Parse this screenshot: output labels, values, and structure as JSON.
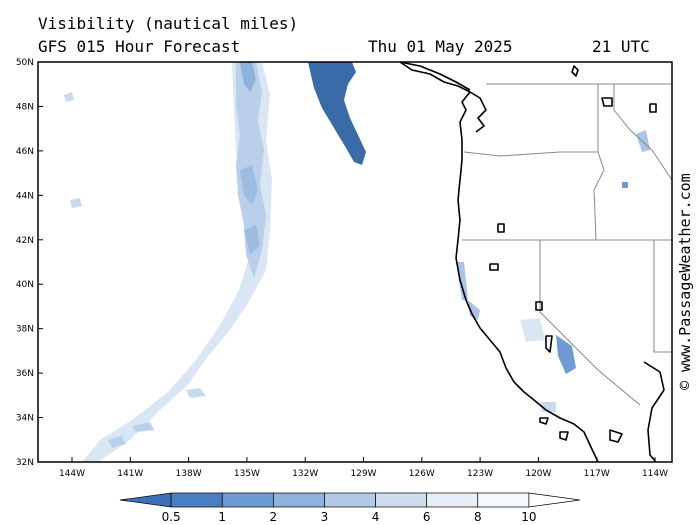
{
  "title": "Visibility (nautical miles)",
  "subtitle": "GFS 015 Hour Forecast",
  "valid_date": "Thu 01 May 2025",
  "valid_time": "21 UTC",
  "credit": "© www.PassageWeather.com",
  "lat_labels": [
    "50N",
    "48N",
    "46N",
    "44N",
    "42N",
    "40N",
    "38N",
    "36N",
    "34N",
    "32N"
  ],
  "lon_labels": [
    "144W",
    "141W",
    "138W",
    "135W",
    "132W",
    "129W",
    "126W",
    "123W",
    "120W",
    "117W",
    "114W"
  ],
  "colorbar": {
    "ticks": [
      "0.5",
      "1",
      "2",
      "3",
      "4",
      "6",
      "8",
      "10"
    ],
    "colors": [
      "#3f6fb8",
      "#4a7fc4",
      "#6d9ad1",
      "#8fb2dc",
      "#b1c9e6",
      "#cfddef",
      "#e6eef8",
      "#f6f9fd",
      "#ffffff"
    ]
  },
  "fill_colors": {
    "dark": "#3b6aa8",
    "medium": "#6f9bd2",
    "light": "#a9c4e6",
    "faint": "#dbe6f4"
  },
  "line_colors": {
    "coast": "#000000",
    "border": "#888888",
    "frame": "#000000"
  }
}
